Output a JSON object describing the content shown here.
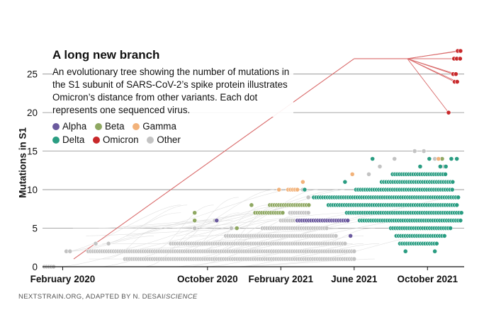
{
  "chart_data": {
    "type": "scatter",
    "title": "A long new branch",
    "subtitle": "An evolutionary tree showing the number of mutations in the S1 subunit of SARS-CoV-2’s spike protein illustrates Omicron’s distance from other variants. Each dot represents one sequenced virus.",
    "ylabel": "Mutations in S1",
    "xlabel": "",
    "ylim": [
      0,
      28
    ],
    "xlim_months": [
      0,
      23
    ],
    "x_unit": "months since January 2020",
    "y_ticks": [
      0,
      5,
      10,
      15,
      20,
      25
    ],
    "x_ticks": [
      {
        "label": "February 2020",
        "value": 1.1
      },
      {
        "label": "October 2020",
        "value": 9.0
      },
      {
        "label": "February 2021",
        "value": 13.0
      },
      {
        "label": "June 2021",
        "value": 17.0
      },
      {
        "label": "October 2021",
        "value": 21.0
      }
    ],
    "legend": [
      {
        "name": "Alpha",
        "color": "#6b5a9e"
      },
      {
        "name": "Beta",
        "color": "#8fa862"
      },
      {
        "name": "Gamma",
        "color": "#f2b27a"
      },
      {
        "name": "Delta",
        "color": "#2a9d82"
      },
      {
        "name": "Omicron",
        "color": "#c8282a"
      },
      {
        "name": "Other",
        "color": "#c3c3c3"
      }
    ],
    "series": [
      {
        "name": "Other",
        "color": "#c3c3c3",
        "rows": [
          {
            "y": 0,
            "x_start": 0.1,
            "x_end": 0.6
          },
          {
            "y": 1,
            "x_start": 4.5,
            "x_end": 17.0
          },
          {
            "y": 2,
            "x_start": 2.5,
            "x_end": 17.0
          },
          {
            "y": 3,
            "x_start": 7.0,
            "x_end": 16.5
          },
          {
            "y": 4,
            "x_start": 10.0,
            "x_end": 16.0
          },
          {
            "y": 5,
            "x_start": 12.0,
            "x_end": 15.5
          },
          {
            "y": 6,
            "x_start": 13.0,
            "x_end": 14.0
          },
          {
            "y": 7,
            "x_start": 13.5,
            "x_end": 14.5
          }
        ],
        "points": [
          {
            "x": 1.3,
            "y": 2
          },
          {
            "x": 1.5,
            "y": 2
          },
          {
            "x": 2.9,
            "y": 3
          },
          {
            "x": 3.6,
            "y": 3
          },
          {
            "x": 14.2,
            "y": 10
          },
          {
            "x": 14.5,
            "y": 9
          },
          {
            "x": 17.8,
            "y": 12
          },
          {
            "x": 18.4,
            "y": 13
          },
          {
            "x": 19.2,
            "y": 14
          },
          {
            "x": 20.3,
            "y": 15
          },
          {
            "x": 20.8,
            "y": 15
          },
          {
            "x": 21.4,
            "y": 14
          },
          {
            "x": 21.9,
            "y": 13
          },
          {
            "x": 8.3,
            "y": 5
          },
          {
            "x": 9.4,
            "y": 6
          },
          {
            "x": 10.3,
            "y": 5
          }
        ]
      },
      {
        "name": "Alpha",
        "color": "#6b5a9e",
        "rows": [
          {
            "y": 6,
            "x_start": 13.9,
            "x_end": 16.7
          }
        ],
        "points": [
          {
            "x": 9.5,
            "y": 6
          },
          {
            "x": 13.5,
            "y": 8
          },
          {
            "x": 16.8,
            "y": 4
          }
        ]
      },
      {
        "name": "Beta",
        "color": "#8fa862",
        "rows": [
          {
            "y": 7,
            "x_start": 11.6,
            "x_end": 13.2
          },
          {
            "y": 8,
            "x_start": 12.4,
            "x_end": 14.6
          }
        ],
        "points": [
          {
            "x": 8.3,
            "y": 6
          },
          {
            "x": 8.3,
            "y": 7
          },
          {
            "x": 10.6,
            "y": 5
          },
          {
            "x": 11.4,
            "y": 8
          },
          {
            "x": 17.2,
            "y": 7
          },
          {
            "x": 21.8,
            "y": 14
          }
        ]
      },
      {
        "name": "Gamma",
        "color": "#f2b27a",
        "rows": [
          {
            "y": 10,
            "x_start": 13.4,
            "x_end": 13.9
          }
        ],
        "points": [
          {
            "x": 12.9,
            "y": 10
          },
          {
            "x": 14.2,
            "y": 11
          },
          {
            "x": 16.9,
            "y": 12
          },
          {
            "x": 18.4,
            "y": 10
          },
          {
            "x": 19.7,
            "y": 11
          },
          {
            "x": 21.6,
            "y": 14
          }
        ]
      },
      {
        "name": "Delta",
        "color": "#2a9d82",
        "rows": [
          {
            "y": 6,
            "x_start": 17.3,
            "x_end": 22.9
          },
          {
            "y": 7,
            "x_start": 16.6,
            "x_end": 22.9
          },
          {
            "y": 8,
            "x_start": 15.6,
            "x_end": 22.7
          },
          {
            "y": 9,
            "x_start": 14.8,
            "x_end": 22.7
          },
          {
            "y": 10,
            "x_start": 17.1,
            "x_end": 22.4
          },
          {
            "y": 11,
            "x_start": 18.5,
            "x_end": 22.4
          },
          {
            "y": 12,
            "x_start": 19.1,
            "x_end": 22.0
          },
          {
            "y": 5,
            "x_start": 19.0,
            "x_end": 22.3
          },
          {
            "y": 4,
            "x_start": 19.3,
            "x_end": 22.0
          },
          {
            "y": 3,
            "x_start": 19.5,
            "x_end": 21.5
          }
        ],
        "points": [
          {
            "x": 18.0,
            "y": 14
          },
          {
            "x": 21.1,
            "y": 14
          },
          {
            "x": 22.3,
            "y": 14
          },
          {
            "x": 22.6,
            "y": 14
          },
          {
            "x": 16.5,
            "y": 11
          },
          {
            "x": 20.6,
            "y": 13
          },
          {
            "x": 21.7,
            "y": 13
          },
          {
            "x": 22.0,
            "y": 13
          },
          {
            "x": 14.3,
            "y": 10
          },
          {
            "x": 21.4,
            "y": 2
          },
          {
            "x": 19.8,
            "y": 2
          }
        ]
      },
      {
        "name": "Omicron",
        "color": "#c8282a",
        "rows": [],
        "points": [
          {
            "x": 22.65,
            "y": 28
          },
          {
            "x": 22.8,
            "y": 28
          },
          {
            "x": 22.45,
            "y": 27
          },
          {
            "x": 22.6,
            "y": 27
          },
          {
            "x": 22.78,
            "y": 27
          },
          {
            "x": 22.4,
            "y": 25
          },
          {
            "x": 22.55,
            "y": 25
          },
          {
            "x": 22.48,
            "y": 24
          },
          {
            "x": 22.62,
            "y": 24
          },
          {
            "x": 22.15,
            "y": 20
          }
        ]
      }
    ],
    "omicron_branch": {
      "from": {
        "x": 1.7,
        "y": 1
      },
      "to": {
        "x": 17.0,
        "y": 27
      },
      "node": {
        "x": 19.9,
        "y": 27
      }
    },
    "credit_main": "NEXTSTRAIN.ORG, ADAPTED BY N. DESAI/",
    "credit_em": "SCIENCE"
  }
}
